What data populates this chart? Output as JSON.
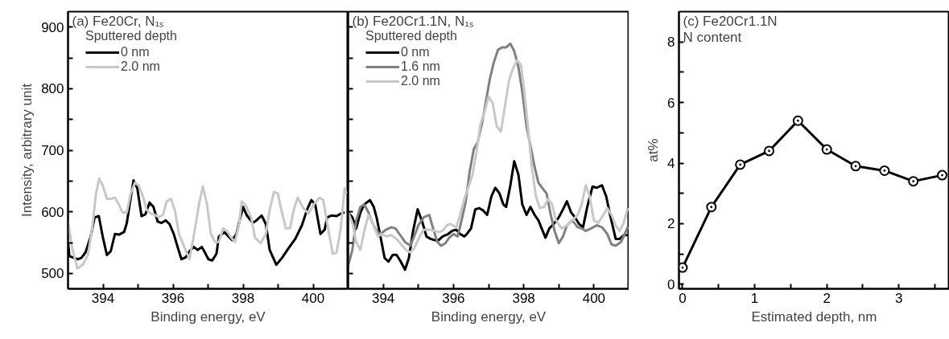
{
  "chart_data": [
    {
      "type": "line",
      "title": "(a) Fe20Cr, N₁ₛ",
      "xlabel": "Binding energy, eV",
      "ylabel": "Intensity, arbitrary unit",
      "legend_title": "Sputtered depth",
      "legend": "top left",
      "line_style": "solid",
      "xlim": [
        393,
        401
      ],
      "ylim": [
        475,
        925
      ],
      "xticks": [
        394,
        {
          "value": 395,
          "label": null
        },
        396,
        {
          "value": 397,
          "label": null
        },
        398,
        {
          "value": 399,
          "label": null
        },
        400
      ],
      "yticks": [
        500,
        {
          "value": 550,
          "label": null
        },
        600,
        {
          "value": 650,
          "label": null
        },
        700,
        {
          "value": 750,
          "label": null
        },
        800,
        {
          "value": 850,
          "label": null
        },
        900
      ],
      "series": [
        {
          "name": "0 nm",
          "color": "#000000",
          "x": [
            393.0,
            393.04,
            393.27,
            393.38,
            393.5,
            393.65,
            393.76,
            393.88,
            393.99,
            394.11,
            394.22,
            394.34,
            394.45,
            394.6,
            394.68,
            394.76,
            394.87,
            394.98,
            395.1,
            395.21,
            395.33,
            395.44,
            395.56,
            395.67,
            395.79,
            395.9,
            396.02,
            396.13,
            396.24,
            396.36,
            396.47,
            396.59,
            396.7,
            396.82,
            396.89,
            397.01,
            397.12,
            397.24,
            397.31,
            397.47,
            397.58,
            397.69,
            397.81,
            397.92,
            398.0,
            398.11,
            398.27,
            398.38,
            398.53,
            398.65,
            398.76,
            398.95,
            399.11,
            399.3,
            399.49,
            399.68,
            399.83,
            399.95,
            400.06,
            400.21,
            400.33,
            400.4,
            400.52,
            400.67,
            400.79,
            400.9
          ],
          "values": [
            550,
            528,
            523,
            525,
            534,
            560,
            591,
            593,
            560,
            530,
            536,
            564,
            563,
            567,
            582,
            612,
            651,
            638,
            593,
            596,
            615,
            608,
            584,
            582,
            586,
            580,
            564,
            543,
            523,
            526,
            536,
            543,
            538,
            543,
            536,
            523,
            521,
            532,
            560,
            567,
            560,
            554,
            564,
            591,
            608,
            594,
            582,
            586,
            594,
            580,
            538,
            514,
            525,
            541,
            556,
            578,
            604,
            619,
            612,
            564,
            571,
            591,
            594,
            593,
            597,
            599
          ]
        },
        {
          "name": "2.0 nm",
          "color": "#c8c8c8",
          "x": [
            393.0,
            393.11,
            393.27,
            393.42,
            393.57,
            393.69,
            393.8,
            393.89,
            393.99,
            394.11,
            394.22,
            394.34,
            394.45,
            394.56,
            394.68,
            394.79,
            394.91,
            395.02,
            395.14,
            395.25,
            395.37,
            395.48,
            395.6,
            395.71,
            395.82,
            395.94,
            396.05,
            396.17,
            396.32,
            396.47,
            396.59,
            396.74,
            396.85,
            396.97,
            397.08,
            397.2,
            397.31,
            397.43,
            397.54,
            397.66,
            397.77,
            397.89,
            397.96,
            398.08,
            398.23,
            398.34,
            398.5,
            398.65,
            398.76,
            398.88,
            398.99,
            399.11,
            399.22,
            399.34,
            399.45,
            399.56,
            399.72,
            399.87,
            400.02,
            400.18,
            400.29,
            400.4,
            400.56,
            400.67,
            400.79,
            400.9,
            400.95
          ],
          "values": [
            586,
            543,
            508,
            514,
            530,
            573,
            630,
            654,
            643,
            621,
            621,
            623,
            612,
            599,
            599,
            630,
            647,
            643,
            625,
            603,
            597,
            595,
            591,
            595,
            617,
            621,
            603,
            564,
            543,
            523,
            560,
            612,
            641,
            612,
            564,
            551,
            551,
            573,
            569,
            558,
            551,
            582,
            617,
            610,
            591,
            558,
            549,
            564,
            604,
            632,
            630,
            599,
            573,
            573,
            604,
            623,
            606,
            597,
            612,
            623,
            619,
            582,
            532,
            534,
            573,
            638,
            630
          ]
        }
      ]
    },
    {
      "type": "line",
      "title": "(b) Fe20Cr1.1N, N₁ₛ",
      "xlabel": "Binding energy, eV",
      "legend_title": "Sputtered depth",
      "legend": "top left",
      "line_style": "solid",
      "tick_labels": "x",
      "xlim": [
        393,
        401
      ],
      "ylim": [
        475,
        925
      ],
      "xticks": [
        394,
        {
          "value": 395,
          "label": null
        },
        396,
        {
          "value": 397,
          "label": null
        },
        398,
        {
          "value": 399,
          "label": null
        },
        400
      ],
      "yticks": [
        {
          "value": 500,
          "label": null
        },
        {
          "value": 550,
          "label": null
        },
        {
          "value": 600,
          "label": null
        },
        {
          "value": 650,
          "label": null
        },
        {
          "value": 700,
          "label": null
        },
        {
          "value": 750,
          "label": null
        },
        {
          "value": 800,
          "label": null
        },
        {
          "value": 850,
          "label": null
        },
        {
          "value": 900,
          "label": null
        }
      ],
      "series": [
        {
          "name": "0 nm",
          "color": "#000000",
          "x": [
            393.0,
            393.12,
            393.23,
            393.35,
            393.46,
            393.62,
            393.73,
            393.81,
            393.92,
            394.04,
            394.15,
            394.27,
            394.38,
            394.5,
            394.62,
            394.73,
            394.85,
            394.98,
            395.12,
            395.23,
            395.35,
            395.46,
            395.58,
            395.69,
            395.85,
            395.96,
            396.08,
            396.19,
            396.31,
            396.38,
            396.5,
            396.62,
            396.73,
            396.85,
            396.96,
            397.08,
            397.19,
            397.31,
            397.42,
            397.5,
            397.62,
            397.73,
            397.85,
            397.96,
            398.08,
            398.19,
            398.31,
            398.42,
            398.54,
            398.62,
            398.73,
            398.85,
            399.0,
            399.12,
            399.23,
            399.35,
            399.46,
            399.58,
            399.69,
            399.81,
            399.96,
            400.08,
            400.23,
            400.35,
            400.46,
            400.62,
            400.73,
            400.85,
            400.96
          ],
          "values": [
            599,
            591,
            573,
            599,
            612,
            619,
            608,
            591,
            560,
            525,
            519,
            530,
            530,
            519,
            506,
            525,
            569,
            604,
            582,
            560,
            556,
            554,
            554,
            560,
            564,
            569,
            571,
            564,
            560,
            564,
            573,
            604,
            606,
            602,
            595,
            625,
            639,
            630,
            612,
            608,
            643,
            682,
            660,
            612,
            595,
            608,
            595,
            586,
            569,
            558,
            573,
            580,
            591,
            604,
            617,
            599,
            591,
            580,
            575,
            608,
            641,
            639,
            643,
            625,
            595,
            556,
            556,
            562,
            562
          ]
        },
        {
          "name": "1.6 nm",
          "color": "#808080",
          "x": [
            393.0,
            393.12,
            393.23,
            393.35,
            393.46,
            393.58,
            393.69,
            393.81,
            393.92,
            394.08,
            394.23,
            394.35,
            394.46,
            394.62,
            394.77,
            394.88,
            395.0,
            395.15,
            395.31,
            395.42,
            395.54,
            395.65,
            395.77,
            395.88,
            396.0,
            396.12,
            396.23,
            396.35,
            396.46,
            396.58,
            396.69,
            396.81,
            396.92,
            397.04,
            397.15,
            397.27,
            397.38,
            397.5,
            397.62,
            397.73,
            397.85,
            397.96,
            398.08,
            398.19,
            398.31,
            398.42,
            398.54,
            398.65,
            398.77,
            398.88,
            399.0,
            399.12,
            399.23,
            399.38,
            399.54,
            399.65,
            399.77,
            399.92,
            400.08,
            400.23,
            400.38,
            400.5,
            400.62,
            400.77,
            400.88,
            400.96
          ],
          "values": [
            512,
            538,
            586,
            608,
            612,
            599,
            582,
            569,
            564,
            571,
            575,
            573,
            564,
            551,
            545,
            560,
            578,
            591,
            595,
            573,
            551,
            545,
            549,
            558,
            564,
            560,
            586,
            617,
            665,
            702,
            713,
            743,
            778,
            817,
            843,
            863,
            867,
            867,
            873,
            861,
            835,
            795,
            739,
            708,
            673,
            647,
            638,
            630,
            595,
            569,
            549,
            560,
            578,
            586,
            575,
            573,
            569,
            573,
            578,
            575,
            564,
            547,
            545,
            551,
            564,
            575
          ]
        },
        {
          "name": "2.0 nm",
          "color": "#c8c8c8",
          "x": [
            393.0,
            393.12,
            393.23,
            393.35,
            393.46,
            393.58,
            393.69,
            393.85,
            393.96,
            394.08,
            394.23,
            394.38,
            394.54,
            394.65,
            394.77,
            394.88,
            395.04,
            395.15,
            395.31,
            395.46,
            395.58,
            395.69,
            395.81,
            395.92,
            396.08,
            396.19,
            396.31,
            396.42,
            396.54,
            396.65,
            396.77,
            396.88,
            397.0,
            397.12,
            397.23,
            397.35,
            397.46,
            397.58,
            397.69,
            397.81,
            397.92,
            398.0,
            398.12,
            398.23,
            398.35,
            398.46,
            398.58,
            398.69,
            398.81,
            398.92,
            399.08,
            399.23,
            399.38,
            399.54,
            399.65,
            399.77,
            399.88,
            400.0,
            400.12,
            400.27,
            400.38,
            400.5,
            400.62,
            400.73,
            400.85,
            400.96
          ],
          "values": [
            599,
            582,
            551,
            538,
            569,
            595,
            582,
            560,
            564,
            560,
            562,
            556,
            545,
            538,
            534,
            541,
            560,
            571,
            571,
            569,
            567,
            569,
            578,
            580,
            575,
            595,
            621,
            639,
            660,
            695,
            743,
            761,
            787,
            776,
            739,
            730,
            769,
            813,
            832,
            846,
            839,
            804,
            739,
            673,
            625,
            606,
            608,
            621,
            612,
            586,
            573,
            578,
            586,
            595,
            612,
            643,
            625,
            586,
            582,
            595,
            606,
            595,
            578,
            569,
            582,
            606
          ]
        }
      ]
    },
    {
      "type": "line",
      "title": "(c) Fe20Cr1.1N",
      "subtitle": "N content",
      "xlabel": "Estimated depth, nm",
      "ylabel": "at%",
      "marker": "circle",
      "line_style": "solid",
      "xlim": [
        -0.05,
        3.7
      ],
      "ylim": [
        -0.15,
        9
      ],
      "xticks": [
        0,
        {
          "value": 0.5,
          "label": null
        },
        1,
        {
          "value": 1.5,
          "label": null
        },
        2,
        {
          "value": 2.5,
          "label": null
        },
        3,
        {
          "value": 3.5,
          "label": null
        }
      ],
      "yticks": [
        0,
        {
          "value": 1,
          "label": null
        },
        2,
        {
          "value": 3,
          "label": null
        },
        4,
        {
          "value": 5,
          "label": null
        },
        6,
        {
          "value": 7,
          "label": null
        },
        8
      ],
      "x": [
        0,
        0.4,
        0.8,
        1.2,
        1.6,
        2.0,
        2.4,
        2.8,
        3.2,
        3.6
      ],
      "series": [
        {
          "color": "#000000",
          "values": [
            0.55,
            2.55,
            3.95,
            4.4,
            5.4,
            4.45,
            3.9,
            3.75,
            3.4,
            3.6
          ]
        }
      ]
    }
  ]
}
